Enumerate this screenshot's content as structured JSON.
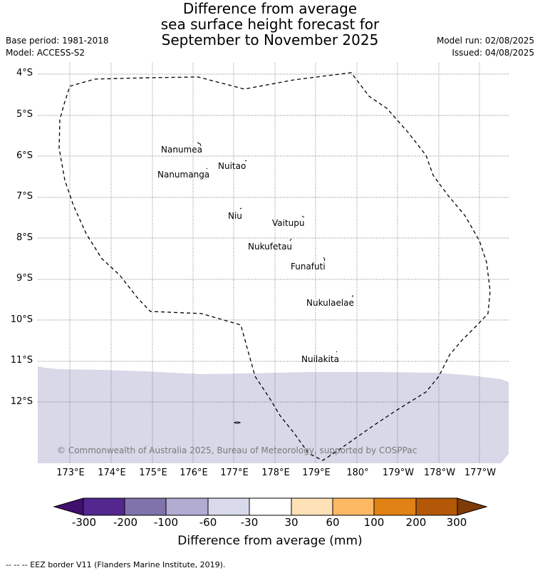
{
  "title": {
    "line1": "Difference from average",
    "line2": "sea surface height forecast for",
    "line3": "September to November 2025"
  },
  "meta_left": {
    "base_period": "Base period: 1981-2018",
    "model": "Model: ACCESS-S2"
  },
  "meta_right": {
    "model_run": "Model run: 02/08/2025",
    "issued": "Issued: 04/08/2025"
  },
  "map": {
    "lat_labels": [
      "4°S",
      "5°S",
      "6°S",
      "7°S",
      "8°S",
      "9°S",
      "10°S",
      "11°S",
      "12°S"
    ],
    "lon_labels": [
      "173°E",
      "174°E",
      "175°E",
      "176°E",
      "177°E",
      "178°E",
      "179°E",
      "180°",
      "179°W",
      "178°W",
      "177°W"
    ],
    "islands": [
      {
        "name": "Nanumea",
        "lon": 176.1,
        "lat": -5.66
      },
      {
        "name": "Nuitao",
        "lon": 177.33,
        "lat": -6.11
      },
      {
        "name": "Nanumanga",
        "lon": 176.32,
        "lat": -6.29
      },
      {
        "name": "Niu",
        "lon": 177.2,
        "lat": -7.3
      },
      {
        "name": "Vaitupu",
        "lon": 178.68,
        "lat": -7.48
      },
      {
        "name": "Nukufetau",
        "lon": 178.37,
        "lat": -8.0
      },
      {
        "name": "Funafuti",
        "lon": 179.2,
        "lat": -8.52
      },
      {
        "name": "Nukulaelae",
        "lon": 179.83,
        "lat": -9.38
      },
      {
        "name": "Nuilakita",
        "lon": 179.57,
        "lat": -10.75
      }
    ],
    "copyright": "© Commonwealth of Australia 2025, Bureau of Meteorology, supported by COSPPac",
    "land_color": "#3a3a3a",
    "anomaly_fill_color": "#d8d8e8",
    "grid": true
  },
  "colorbar": {
    "title": "Difference from average (mm)",
    "ticks": [
      "-300",
      "-200",
      "-100",
      "-60",
      "-30",
      "30",
      "60",
      "100",
      "200",
      "300"
    ],
    "colors": [
      "#3f0f6e",
      "#54278f",
      "#8073ac",
      "#b2abd2",
      "#d8daeb",
      "#ffffff",
      "#fee0b6",
      "#fdb863",
      "#e08214",
      "#b35806",
      "#7f3b08"
    ]
  },
  "footer": "--  --  -- EEZ border V11 (Flanders Marine Institute, 2019)."
}
